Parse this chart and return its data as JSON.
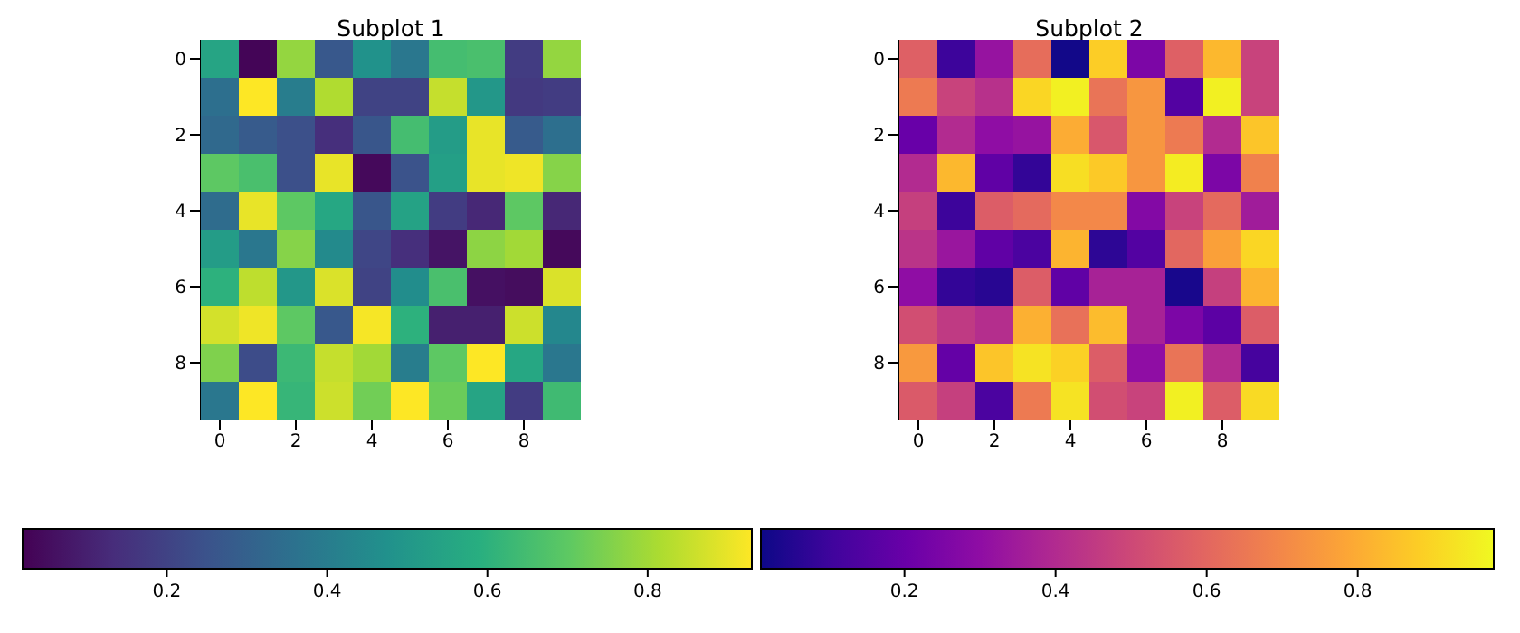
{
  "chart_data": [
    {
      "type": "heatmap",
      "title": "Subplot 1",
      "categories": [
        "0",
        null,
        "2",
        null,
        "4",
        null,
        "6",
        null,
        "8",
        null
      ],
      "y_categories": [
        "0",
        null,
        "2",
        null,
        "4",
        null,
        "6",
        null,
        "8",
        null
      ],
      "cells": [
        [
          0.55,
          0.03,
          0.78,
          0.27,
          0.48,
          0.38,
          0.65,
          0.66,
          0.18,
          0.78
        ],
        [
          0.35,
          0.93,
          0.4,
          0.82,
          0.2,
          0.2,
          0.85,
          0.5,
          0.17,
          0.18
        ],
        [
          0.33,
          0.28,
          0.24,
          0.14,
          0.26,
          0.65,
          0.52,
          0.9,
          0.28,
          0.35
        ],
        [
          0.7,
          0.66,
          0.24,
          0.9,
          0.04,
          0.25,
          0.53,
          0.9,
          0.91,
          0.76
        ],
        [
          0.34,
          0.9,
          0.7,
          0.56,
          0.26,
          0.54,
          0.18,
          0.12,
          0.7,
          0.12
        ],
        [
          0.52,
          0.38,
          0.76,
          0.45,
          0.21,
          0.14,
          0.07,
          0.77,
          0.8,
          0.04
        ],
        [
          0.6,
          0.84,
          0.5,
          0.88,
          0.2,
          0.46,
          0.66,
          0.06,
          0.05,
          0.88
        ],
        [
          0.87,
          0.91,
          0.7,
          0.27,
          0.92,
          0.6,
          0.1,
          0.1,
          0.86,
          0.44
        ],
        [
          0.75,
          0.23,
          0.63,
          0.85,
          0.8,
          0.4,
          0.7,
          0.93,
          0.56,
          0.38
        ],
        [
          0.38,
          0.93,
          0.62,
          0.86,
          0.73,
          0.93,
          0.72,
          0.55,
          0.18,
          0.64
        ]
      ],
      "clim": [
        0.02,
        0.93
      ],
      "cticks": [
        0.2,
        0.4,
        0.6,
        0.8
      ],
      "colors": [
        "#440154",
        "#472d7b",
        "#3b528b",
        "#2c728e",
        "#21918c",
        "#28ae80",
        "#5ec962",
        "#addc30",
        "#fde725"
      ]
    },
    {
      "type": "heatmap",
      "title": "Subplot 2",
      "categories": [
        "0",
        null,
        "2",
        null,
        "4",
        null,
        "6",
        null,
        "8",
        null
      ],
      "y_categories": [
        "0",
        null,
        "2",
        null,
        "4",
        null,
        "6",
        null,
        "8",
        null
      ],
      "cells": [
        [
          0.58,
          0.1,
          0.32,
          0.62,
          0.02,
          0.88,
          0.25,
          0.58,
          0.83,
          0.48
        ],
        [
          0.66,
          0.48,
          0.42,
          0.9,
          0.96,
          0.64,
          0.74,
          0.15,
          0.96,
          0.48
        ],
        [
          0.2,
          0.4,
          0.3,
          0.32,
          0.8,
          0.55,
          0.74,
          0.66,
          0.4,
          0.86
        ],
        [
          0.4,
          0.83,
          0.18,
          0.08,
          0.92,
          0.87,
          0.74,
          0.95,
          0.25,
          0.68
        ],
        [
          0.47,
          0.1,
          0.57,
          0.61,
          0.7,
          0.7,
          0.27,
          0.48,
          0.61,
          0.35
        ],
        [
          0.43,
          0.33,
          0.18,
          0.13,
          0.82,
          0.07,
          0.15,
          0.6,
          0.77,
          0.9
        ],
        [
          0.3,
          0.08,
          0.06,
          0.57,
          0.18,
          0.37,
          0.37,
          0.03,
          0.47,
          0.82
        ],
        [
          0.52,
          0.45,
          0.41,
          0.81,
          0.63,
          0.84,
          0.37,
          0.25,
          0.17,
          0.57
        ],
        [
          0.75,
          0.19,
          0.86,
          0.93,
          0.89,
          0.57,
          0.3,
          0.64,
          0.4,
          0.12
        ],
        [
          0.56,
          0.47,
          0.13,
          0.66,
          0.93,
          0.52,
          0.48,
          0.96,
          0.57,
          0.91
        ]
      ],
      "clim": [
        0.01,
        0.98
      ],
      "cticks": [
        0.2,
        0.4,
        0.6,
        0.8
      ],
      "colors": [
        "#0d0887",
        "#41049d",
        "#6a00a8",
        "#8f0da4",
        "#b12a90",
        "#cc4778",
        "#e16462",
        "#f2844b",
        "#fca636",
        "#fcce25",
        "#f0f921"
      ]
    }
  ]
}
